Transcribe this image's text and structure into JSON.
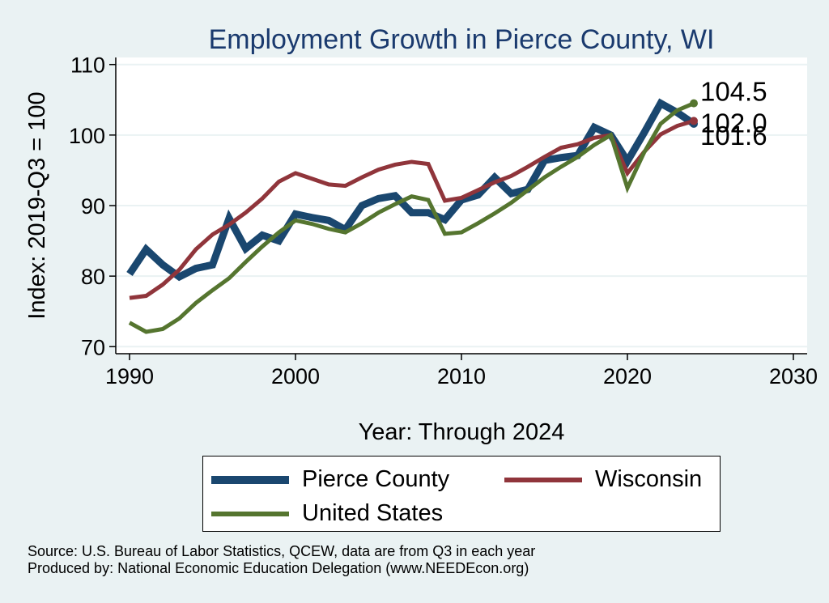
{
  "chart_data": {
    "type": "line",
    "title": "Employment Growth in Pierce County, WI",
    "xlabel": "Year: Through 2024",
    "ylabel": "Index: 2019-Q3 = 100",
    "xlim": [
      1990,
      2030
    ],
    "ylim": [
      69,
      111
    ],
    "xticks": [
      1990,
      2000,
      2010,
      2020,
      2030
    ],
    "yticks": [
      70,
      80,
      90,
      100,
      110
    ],
    "grid": true,
    "legend_position": "bottom",
    "x": [
      1990,
      1991,
      1992,
      1993,
      1994,
      1995,
      1996,
      1997,
      1998,
      1999,
      2000,
      2001,
      2002,
      2003,
      2004,
      2005,
      2006,
      2007,
      2008,
      2009,
      2010,
      2011,
      2012,
      2013,
      2014,
      2015,
      2016,
      2017,
      2018,
      2019,
      2020,
      2021,
      2022,
      2023,
      2024
    ],
    "series": [
      {
        "name": "Pierce  County",
        "color": "#1a476f",
        "width": 9,
        "values": [
          80.3,
          83.8,
          81.6,
          79.9,
          81.1,
          81.6,
          88.2,
          83.9,
          85.8,
          85.0,
          88.8,
          88.3,
          87.9,
          86.6,
          90.0,
          91.0,
          91.4,
          89.0,
          89.0,
          88.0,
          90.8,
          91.5,
          94.0,
          91.7,
          92.3,
          96.4,
          96.8,
          97.1,
          101.1,
          100.0,
          96.3,
          100.3,
          104.5,
          103.2,
          101.6
        ]
      },
      {
        "name": "Wisconsin",
        "color": "#90353b",
        "width": 5,
        "values": [
          76.9,
          77.2,
          78.8,
          80.9,
          83.8,
          85.9,
          87.3,
          89.0,
          91.0,
          93.4,
          94.6,
          93.8,
          93.0,
          92.8,
          94.0,
          95.1,
          95.8,
          96.2,
          95.9,
          90.7,
          91.1,
          92.2,
          93.3,
          94.2,
          95.5,
          96.9,
          98.2,
          98.7,
          99.6,
          100.0,
          94.6,
          97.6,
          100.1,
          101.3,
          102.0
        ]
      },
      {
        "name": "United States",
        "color": "#55752f",
        "width": 5,
        "values": [
          73.4,
          72.1,
          72.5,
          74.0,
          76.2,
          78.0,
          79.7,
          82.0,
          84.2,
          86.2,
          87.9,
          87.4,
          86.7,
          86.2,
          87.5,
          89.0,
          90.2,
          91.3,
          90.8,
          86.0,
          86.2,
          87.5,
          88.9,
          90.4,
          92.2,
          94.0,
          95.5,
          96.9,
          98.6,
          100.0,
          92.5,
          97.5,
          101.6,
          103.5,
          104.5
        ]
      }
    ],
    "annotations": [
      {
        "text": "104.5",
        "x": 2024,
        "y": 104.5,
        "color": "#55752f"
      },
      {
        "text": "102.0",
        "x": 2024,
        "y": 102.0,
        "color": "#90353b"
      },
      {
        "text": "101.6",
        "x": 2024,
        "y": 101.6,
        "color": "#1a476f"
      }
    ]
  },
  "footer": {
    "source": "Source: U.S. Bureau of Labor Statistics, QCEW, data are from Q3 in each year",
    "producer": "Produced by: National Economic Education Delegation (www.NEEDEcon.org)"
  }
}
